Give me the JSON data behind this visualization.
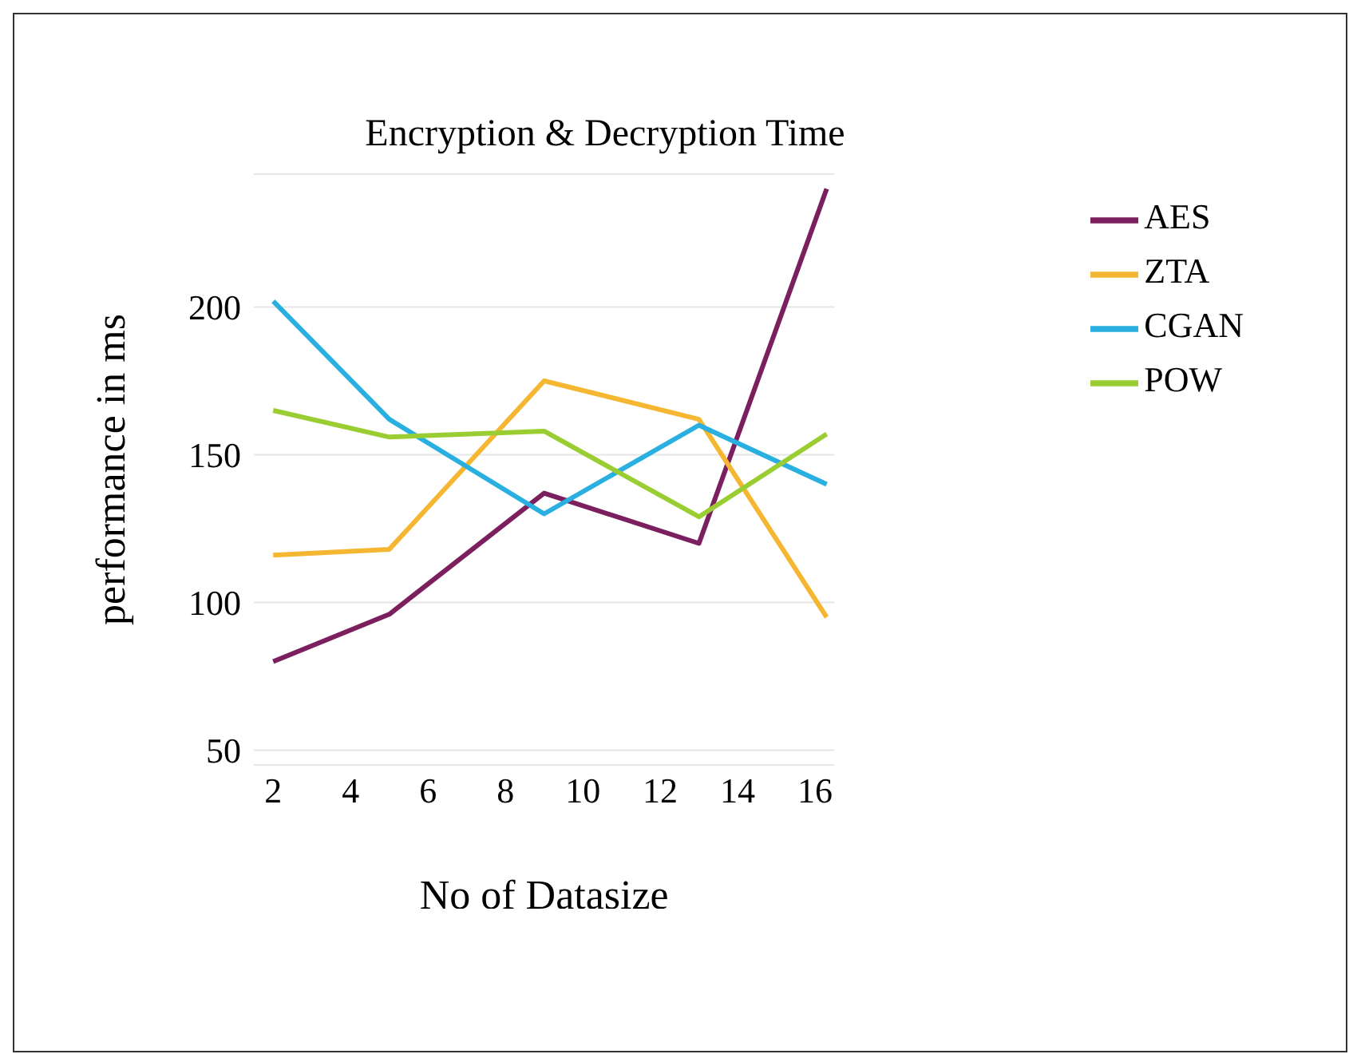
{
  "chart_data": {
    "type": "line",
    "title": "Encryption & Decryption Time",
    "xlabel": "No of  Datasize",
    "ylabel": "performance in ms",
    "x": [
      2,
      5,
      9,
      13,
      16.3
    ],
    "series": [
      {
        "name": "AES",
        "color": "#7b1f5e",
        "values": [
          80,
          96,
          137,
          120,
          240
        ]
      },
      {
        "name": "ZTA",
        "color": "#f5b731",
        "values": [
          116,
          118,
          175,
          162,
          95
        ]
      },
      {
        "name": "CGAN",
        "color": "#29b0e0",
        "values": [
          202,
          162,
          130,
          160,
          140
        ]
      },
      {
        "name": "POW",
        "color": "#9acd32",
        "values": [
          165,
          156,
          158,
          129,
          157
        ]
      }
    ],
    "xlim": [
      1.5,
      16.5
    ],
    "xticks": [
      2,
      4,
      6,
      8,
      10,
      12,
      14,
      16
    ],
    "ylim": [
      45,
      245
    ],
    "yticks": [
      50,
      100,
      150,
      200
    ],
    "grid": "y",
    "legend": "top right",
    "marker": "none",
    "line_style": "solid"
  }
}
